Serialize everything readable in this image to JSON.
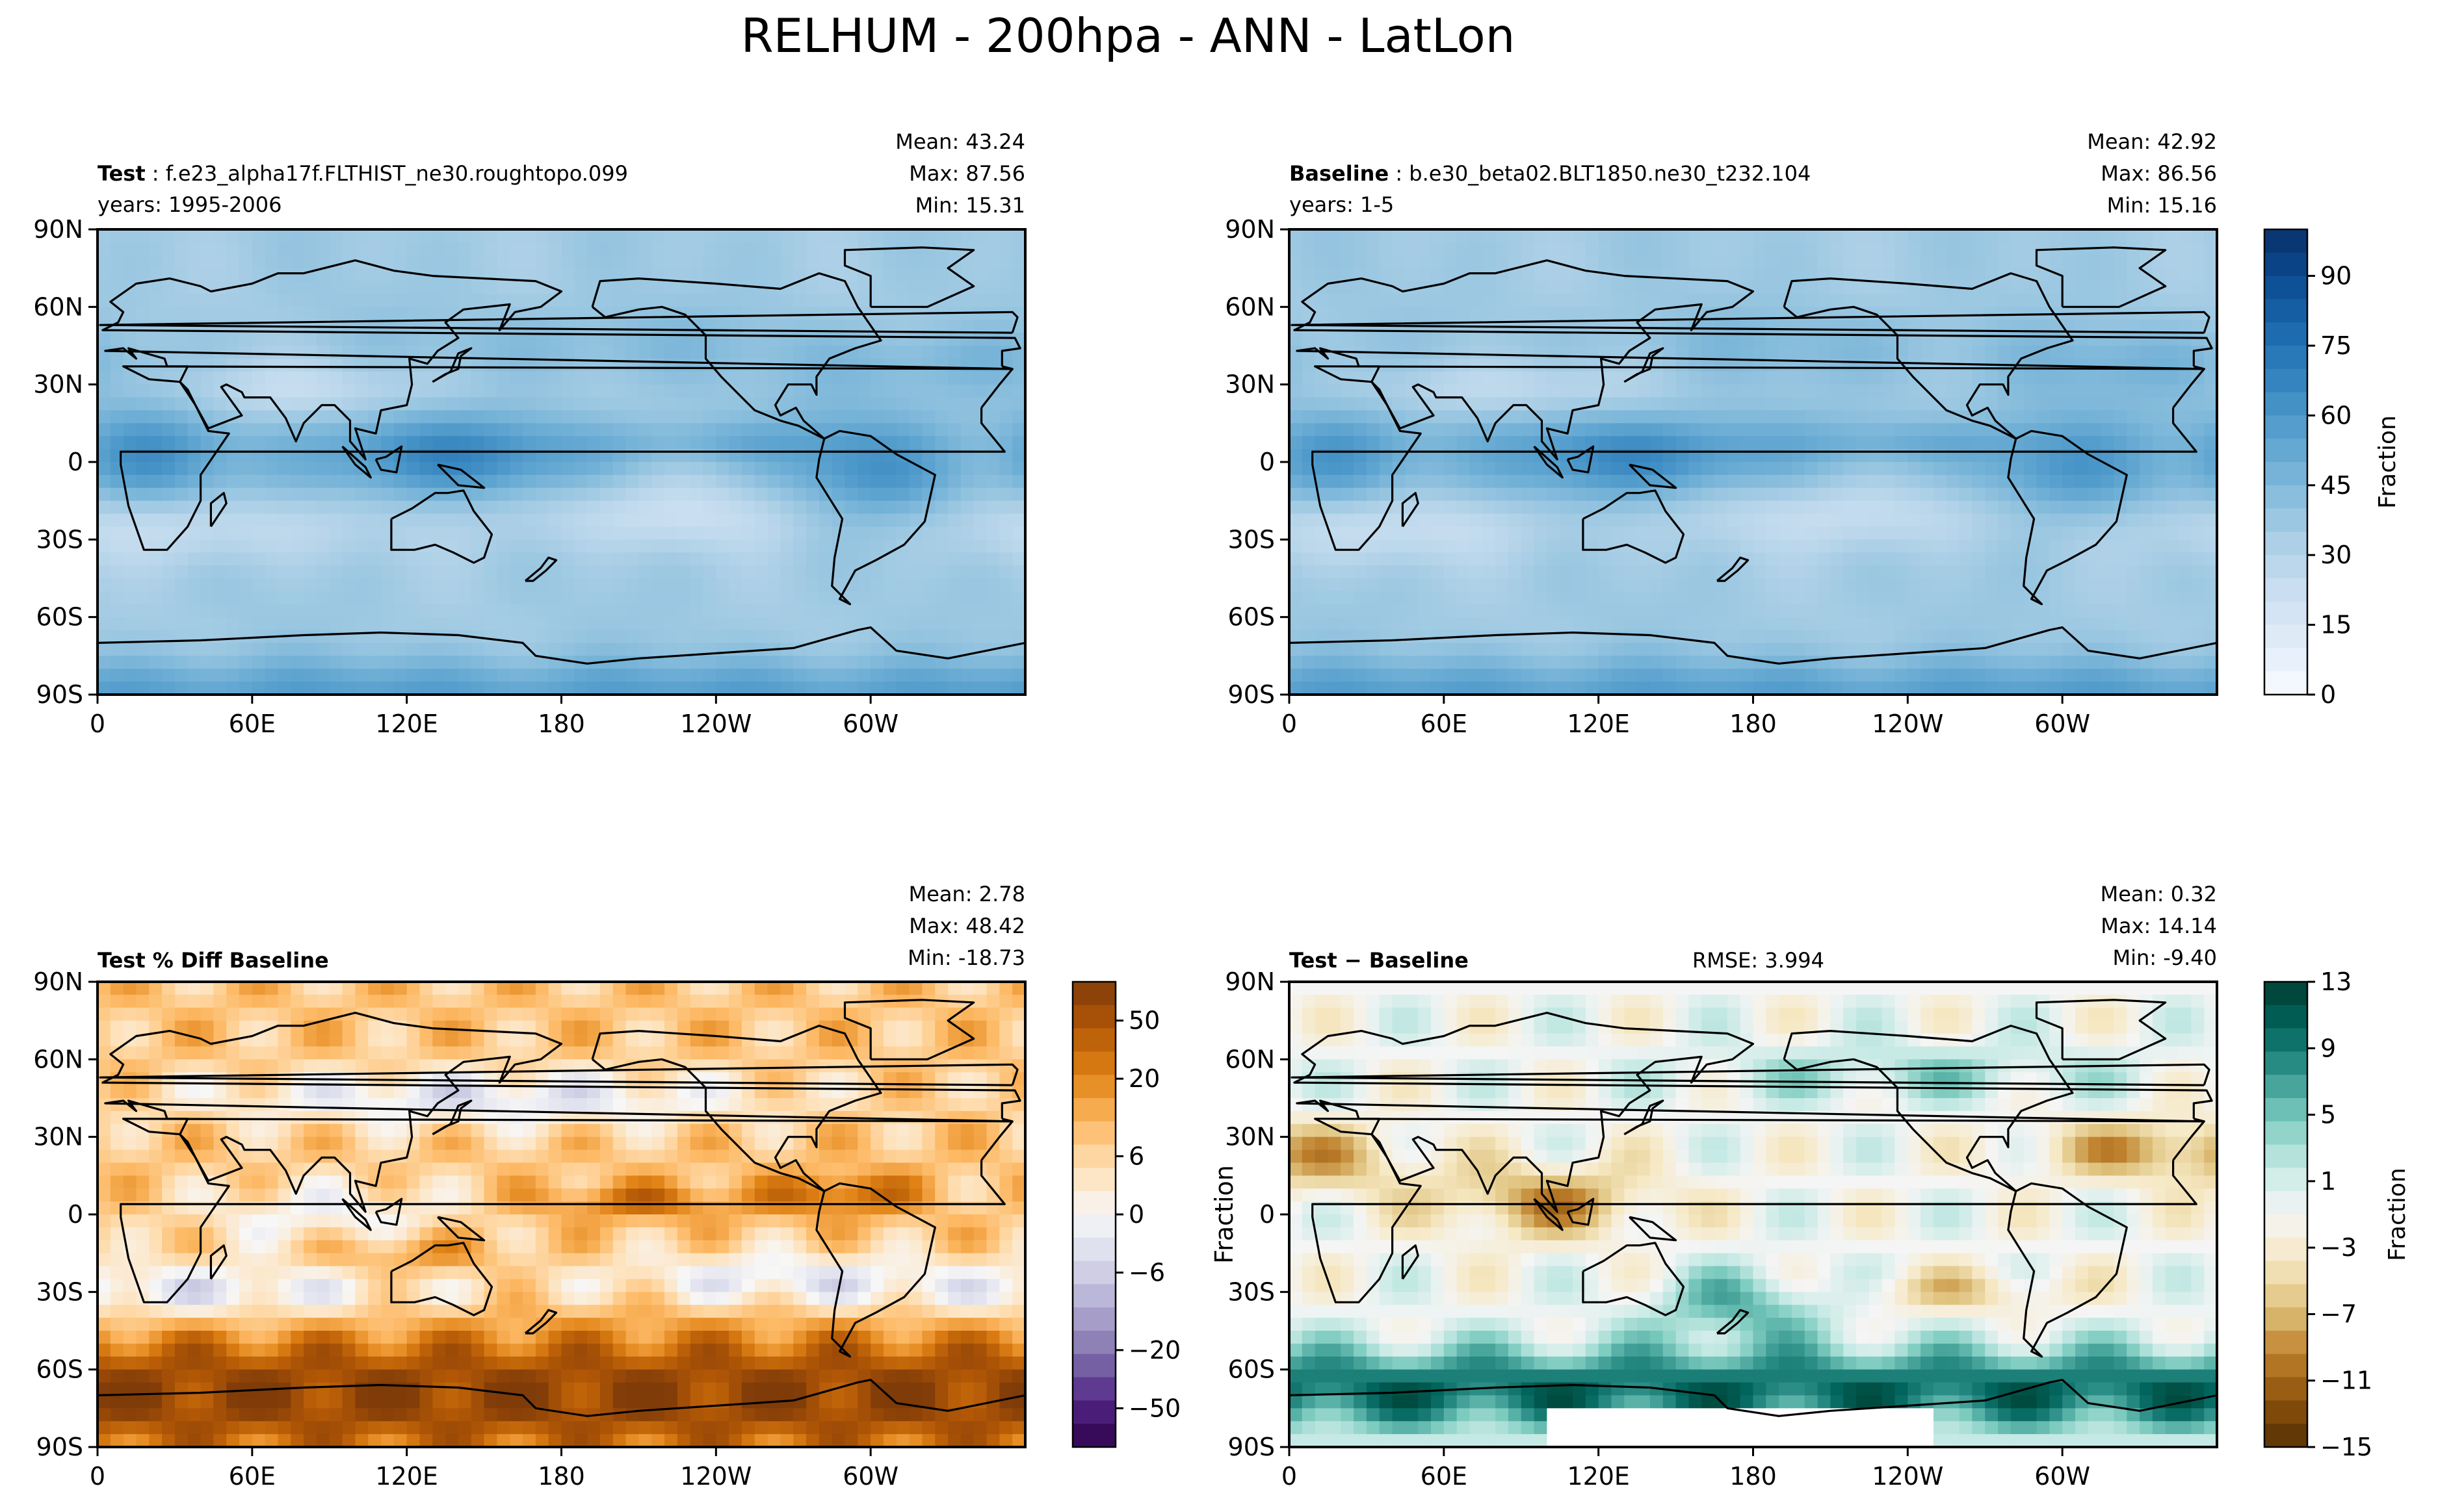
{
  "figure": {
    "title": "RELHUM - 200hpa - ANN - LatLon"
  },
  "colors": {
    "blues": [
      "#f7fbff",
      "#e3eef9",
      "#cfe1f2",
      "#b5d4e9",
      "#93c3df",
      "#6daed5",
      "#4b97c9",
      "#2f7ebc",
      "#1864aa",
      "#0a4a90",
      "#08306b"
    ],
    "diverge_pu_or": [
      "#2d004b",
      "#542788",
      "#8073ac",
      "#b2abd2",
      "#d8daeb",
      "#f7f7f7",
      "#fee0b6",
      "#fdb863",
      "#e08214",
      "#b35806",
      "#7f3b08"
    ],
    "diverge_brbg": [
      "#543005",
      "#8c510a",
      "#bf812d",
      "#dfc27d",
      "#f6e8c3",
      "#f5f5f5",
      "#c7eae5",
      "#80cdc1",
      "#35978f",
      "#01665e",
      "#003c30"
    ],
    "coast": "#000000"
  },
  "chart_data": [
    {
      "type": "heatmap",
      "panel": "test",
      "label_bold": "Test",
      "label_text": ": f.e23_alpha17f.FLTHIST_ne30.roughtopo.099",
      "years": "years: 1995-2006",
      "stats": [
        "Mean: 43.24",
        "Max: 87.56",
        "Min: 15.31"
      ],
      "x_ticks": [
        "0",
        "60E",
        "120E",
        "180",
        "120W",
        "60W"
      ],
      "x_tick_values": [
        0,
        60,
        120,
        180,
        240,
        300
      ],
      "xlim": [
        0,
        360
      ],
      "y_ticks": [
        "90N",
        "60N",
        "30N",
        "0",
        "30S",
        "60S",
        "90S"
      ],
      "y_tick_values": [
        90,
        60,
        30,
        0,
        -30,
        -60,
        -90
      ],
      "ylim": [
        -90,
        90
      ],
      "value_range": [
        15.31,
        87.56
      ],
      "mean": 43.24
    },
    {
      "type": "heatmap",
      "panel": "baseline",
      "label_bold": "Baseline",
      "label_text": ": b.e30_beta02.BLT1850.ne30_t232.104",
      "years": "years: 1-5",
      "stats": [
        "Mean: 42.92",
        "Max: 86.56",
        "Min: 15.16"
      ],
      "x_ticks": [
        "0",
        "60E",
        "120E",
        "180",
        "120W",
        "60W"
      ],
      "x_tick_values": [
        0,
        60,
        120,
        180,
        240,
        300
      ],
      "xlim": [
        0,
        360
      ],
      "y_ticks": [
        "90N",
        "60N",
        "30N",
        "0",
        "30S",
        "60S",
        "90S"
      ],
      "y_tick_values": [
        90,
        60,
        30,
        0,
        -30,
        -60,
        -90
      ],
      "ylim": [
        -90,
        90
      ],
      "value_range": [
        15.16,
        86.56
      ],
      "mean": 42.92,
      "colorbar": {
        "label": "Fraction",
        "range": [
          0,
          100
        ],
        "ticks": [
          "0",
          "15",
          "30",
          "45",
          "60",
          "75",
          "90"
        ],
        "tick_values": [
          0,
          15,
          30,
          45,
          60,
          75,
          90
        ]
      }
    },
    {
      "type": "heatmap",
      "panel": "pct_diff",
      "label_bold": "Test % Diff Baseline",
      "stats": [
        "Mean:  2.78",
        "Max: 48.42",
        "Min: -18.73"
      ],
      "x_ticks": [
        "0",
        "60E",
        "120E",
        "180",
        "120W",
        "60W"
      ],
      "x_tick_values": [
        0,
        60,
        120,
        180,
        240,
        300
      ],
      "xlim": [
        0,
        360
      ],
      "y_ticks": [
        "90N",
        "60N",
        "30N",
        "0",
        "30S",
        "60S",
        "90S"
      ],
      "y_tick_values": [
        90,
        60,
        30,
        0,
        -30,
        -60,
        -90
      ],
      "ylim": [
        -90,
        90
      ],
      "value_range": [
        -18.73,
        48.42
      ],
      "mean": 2.78,
      "colorbar": {
        "label": "",
        "ticks": [
          "−50",
          "−20",
          "−6",
          "0",
          "6",
          "20",
          "50"
        ],
        "tick_values": [
          -50,
          -20,
          -6,
          0,
          6,
          20,
          50
        ],
        "levels": [
          -70,
          -60,
          -50,
          -40,
          -30,
          -20,
          -15,
          -10,
          -8,
          -6,
          -4,
          -2,
          0,
          2,
          4,
          6,
          8,
          10,
          15,
          20,
          30,
          40,
          50,
          60,
          70
        ]
      }
    },
    {
      "type": "heatmap",
      "panel": "diff",
      "label_bold": "Test − Baseline",
      "rmse": "RMSE: 3.994",
      "stats": [
        "Mean:  0.32",
        "Max: 14.14",
        "Min: -9.40"
      ],
      "x_ticks": [
        "0",
        "60E",
        "120E",
        "180",
        "120W",
        "60W"
      ],
      "x_tick_values": [
        0,
        60,
        120,
        180,
        240,
        300
      ],
      "xlim": [
        0,
        360
      ],
      "y_ticks": [
        "90N",
        "60N",
        "30N",
        "0",
        "30S",
        "60S",
        "90S"
      ],
      "y_tick_values": [
        90,
        60,
        30,
        0,
        -30,
        -60,
        -90
      ],
      "ylim": [
        -90,
        90
      ],
      "ylabel": "Fraction",
      "value_range": [
        -9.4,
        14.14
      ],
      "mean": 0.32,
      "colorbar": {
        "label": "Fraction",
        "range": [
          -15,
          13
        ],
        "ticks": [
          "13",
          "9",
          "5",
          "1",
          "−3",
          "−7",
          "−11",
          "−15"
        ],
        "tick_values": [
          13,
          9,
          5,
          1,
          -3,
          -7,
          -11,
          -15
        ]
      }
    }
  ]
}
